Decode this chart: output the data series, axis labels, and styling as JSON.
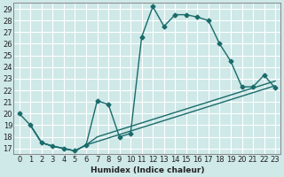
{
  "xlabel": "Humidex (Indice chaleur)",
  "bg_color": "#cfe8e8",
  "grid_color": "#ffffff",
  "line_color": "#1a6b6b",
  "xlim": [
    -0.5,
    23.5
  ],
  "ylim": [
    16.5,
    29.5
  ],
  "xticks": [
    0,
    1,
    2,
    3,
    4,
    5,
    6,
    7,
    8,
    9,
    10,
    11,
    12,
    13,
    14,
    15,
    16,
    17,
    18,
    19,
    20,
    21,
    22,
    23
  ],
  "yticks": [
    17,
    18,
    19,
    20,
    21,
    22,
    23,
    24,
    25,
    26,
    27,
    28,
    29
  ],
  "line1_x": [
    0,
    1,
    2,
    3,
    4,
    5,
    6,
    7,
    8,
    9,
    10,
    11,
    12,
    13,
    14,
    15,
    16,
    17,
    18,
    19,
    20,
    21,
    22,
    23
  ],
  "line1_y": [
    20,
    19,
    17.5,
    17.2,
    17,
    16.8,
    17.3,
    21.1,
    20.8,
    18,
    18.3,
    26.6,
    29.2,
    27.5,
    28.5,
    28.5,
    28.3,
    28,
    26,
    24.5,
    22.3,
    22.3,
    23.3,
    22.2
  ],
  "line2_x": [
    1,
    2,
    3,
    4,
    5,
    6,
    7,
    8,
    9,
    10,
    11,
    12,
    13,
    14,
    15,
    16,
    17,
    18,
    19,
    20,
    21,
    22,
    23
  ],
  "line2_y": [
    19,
    17.5,
    17.2,
    17,
    16.8,
    17.3,
    18,
    18.3,
    18.6,
    18.9,
    19.2,
    19.5,
    19.8,
    20.1,
    20.4,
    20.7,
    21,
    21.3,
    21.6,
    21.9,
    22.2,
    22.5,
    22.8
  ],
  "line3_x": [
    1,
    2,
    3,
    4,
    5,
    6,
    7,
    8,
    9,
    10,
    11,
    12,
    13,
    14,
    15,
    16,
    17,
    18,
    19,
    20,
    21,
    22,
    23
  ],
  "line3_y": [
    19,
    17.5,
    17.2,
    17,
    16.8,
    17.3,
    17.6,
    17.9,
    18.2,
    18.5,
    18.8,
    19.1,
    19.4,
    19.7,
    20.0,
    20.3,
    20.6,
    20.9,
    21.2,
    21.5,
    21.8,
    22.1,
    22.4
  ],
  "marker_size": 2.5,
  "line_width": 1.0,
  "font_size": 6.0
}
